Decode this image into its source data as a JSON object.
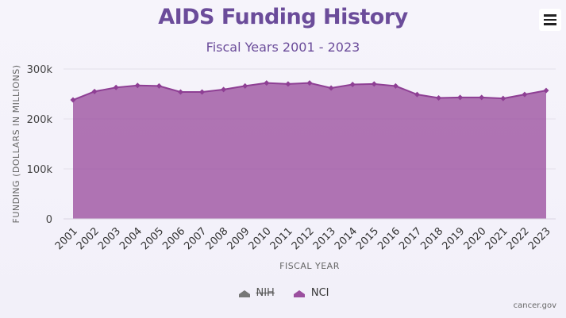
{
  "chart_data": {
    "type": "area",
    "title": "AIDS Funding History",
    "subtitle": "Fiscal Years 2001 - 2023",
    "xlabel": "FISCAL YEAR",
    "ylabel": "FUNDING (DOLLARS IN MILLIONS)",
    "ylim": [
      0,
      300000
    ],
    "yticks": [
      0,
      100000,
      200000,
      300000
    ],
    "ytick_labels": [
      "0",
      "100k",
      "200k",
      "300k"
    ],
    "categories": [
      "2001",
      "2002",
      "2003",
      "2004",
      "2005",
      "2006",
      "2007",
      "2008",
      "2009",
      "2010",
      "2011",
      "2012",
      "2013",
      "2014",
      "2015",
      "2016",
      "2017",
      "2018",
      "2019",
      "2020",
      "2021",
      "2022",
      "2023"
    ],
    "series": [
      {
        "name": "NCI",
        "color": "#9b4f9f",
        "visible": true,
        "values": [
          238000,
          255000,
          263000,
          267000,
          266000,
          254000,
          254000,
          259000,
          266000,
          272000,
          270000,
          272000,
          262000,
          269000,
          270000,
          266000,
          249000,
          242000,
          243000,
          243000,
          241000,
          249000,
          257000
        ]
      }
    ],
    "grid": true,
    "legend_position": "bottom-center"
  },
  "legend": [
    {
      "label": "NIH",
      "color": "#888888",
      "hidden": true
    },
    {
      "label": "NCI",
      "color": "#9b4f9f",
      "hidden": false
    }
  ],
  "menu": {
    "icon": "hamburger-menu-icon"
  },
  "credits": "cancer.gov"
}
